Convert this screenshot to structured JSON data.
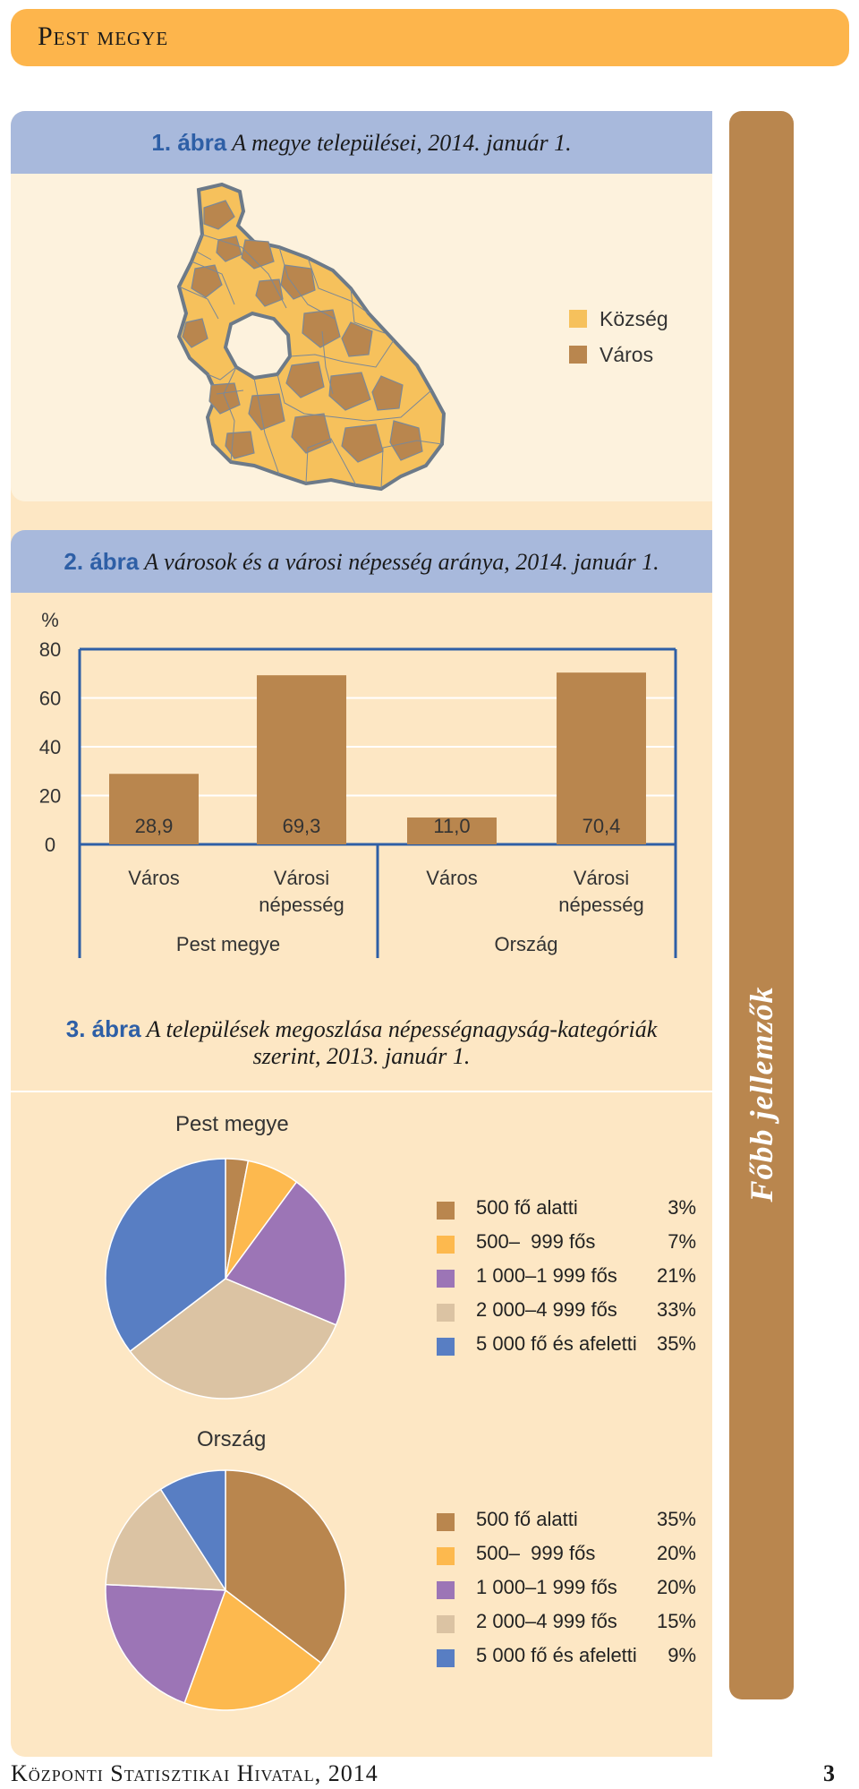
{
  "header": {
    "title": "Pest megye"
  },
  "side_tab": {
    "label": "Főbb jellemzők"
  },
  "figure1": {
    "number": "1. ábra",
    "title": "A megye települései, 2014. január 1.",
    "legend": [
      {
        "label": "Község",
        "color": "#f6c15c"
      },
      {
        "label": "Város",
        "color": "#b9864e"
      }
    ]
  },
  "figure2": {
    "number": "2. ábra",
    "title": "A városok és a városi népesség aránya, 2014. január 1."
  },
  "figure3": {
    "number": "3. ábra",
    "title_line1": "A települések megoszlása népességnagyság-kategóriák",
    "title_line2": "szerint, 2013. január 1."
  },
  "footer": {
    "text": "Központi Statisztikai Hivatal, 2014",
    "page": "3"
  },
  "chart_data": [
    {
      "type": "bar",
      "title": "A városok és a városi népesség aránya, 2014. január 1.",
      "ylabel": "%",
      "ylim": [
        0,
        80
      ],
      "yticks": [
        0,
        20,
        40,
        60,
        80
      ],
      "groups": [
        "Pest megye",
        "Ország"
      ],
      "categories": [
        "Város",
        "Városi\nnépesség",
        "Város",
        "Városi\nnépesség"
      ],
      "values": [
        28.9,
        69.3,
        11.0,
        70.4
      ],
      "value_labels": [
        "28,9",
        "69,3",
        "11,0",
        "70,4"
      ],
      "color": "#b9864e"
    },
    {
      "type": "pie",
      "title": "Pest megye",
      "categories": [
        "500 fő alatti",
        "500–  999 fős",
        "1 000–1 999 fős",
        "2 000–4 999 fős",
        "5 000 fő és afeletti"
      ],
      "values": [
        3,
        7,
        21,
        33,
        35
      ],
      "value_labels": [
        "3%",
        "7%",
        "21%",
        "33%",
        "35%"
      ],
      "colors": [
        "#b9864e",
        "#fdb94e",
        "#9c75b6",
        "#dbc3a3",
        "#587ec3"
      ]
    },
    {
      "type": "pie",
      "title": "Ország",
      "categories": [
        "500 fő alatti",
        "500–  999 fős",
        "1 000–1 999 fős",
        "2 000–4 999 fős",
        "5 000 fő és afeletti"
      ],
      "values": [
        35,
        20,
        20,
        15,
        9
      ],
      "value_labels": [
        "35%",
        "20%",
        "20%",
        "15%",
        "9%"
      ],
      "colors": [
        "#b9864e",
        "#fdb94e",
        "#9c75b6",
        "#dbc3a3",
        "#587ec3"
      ]
    }
  ]
}
